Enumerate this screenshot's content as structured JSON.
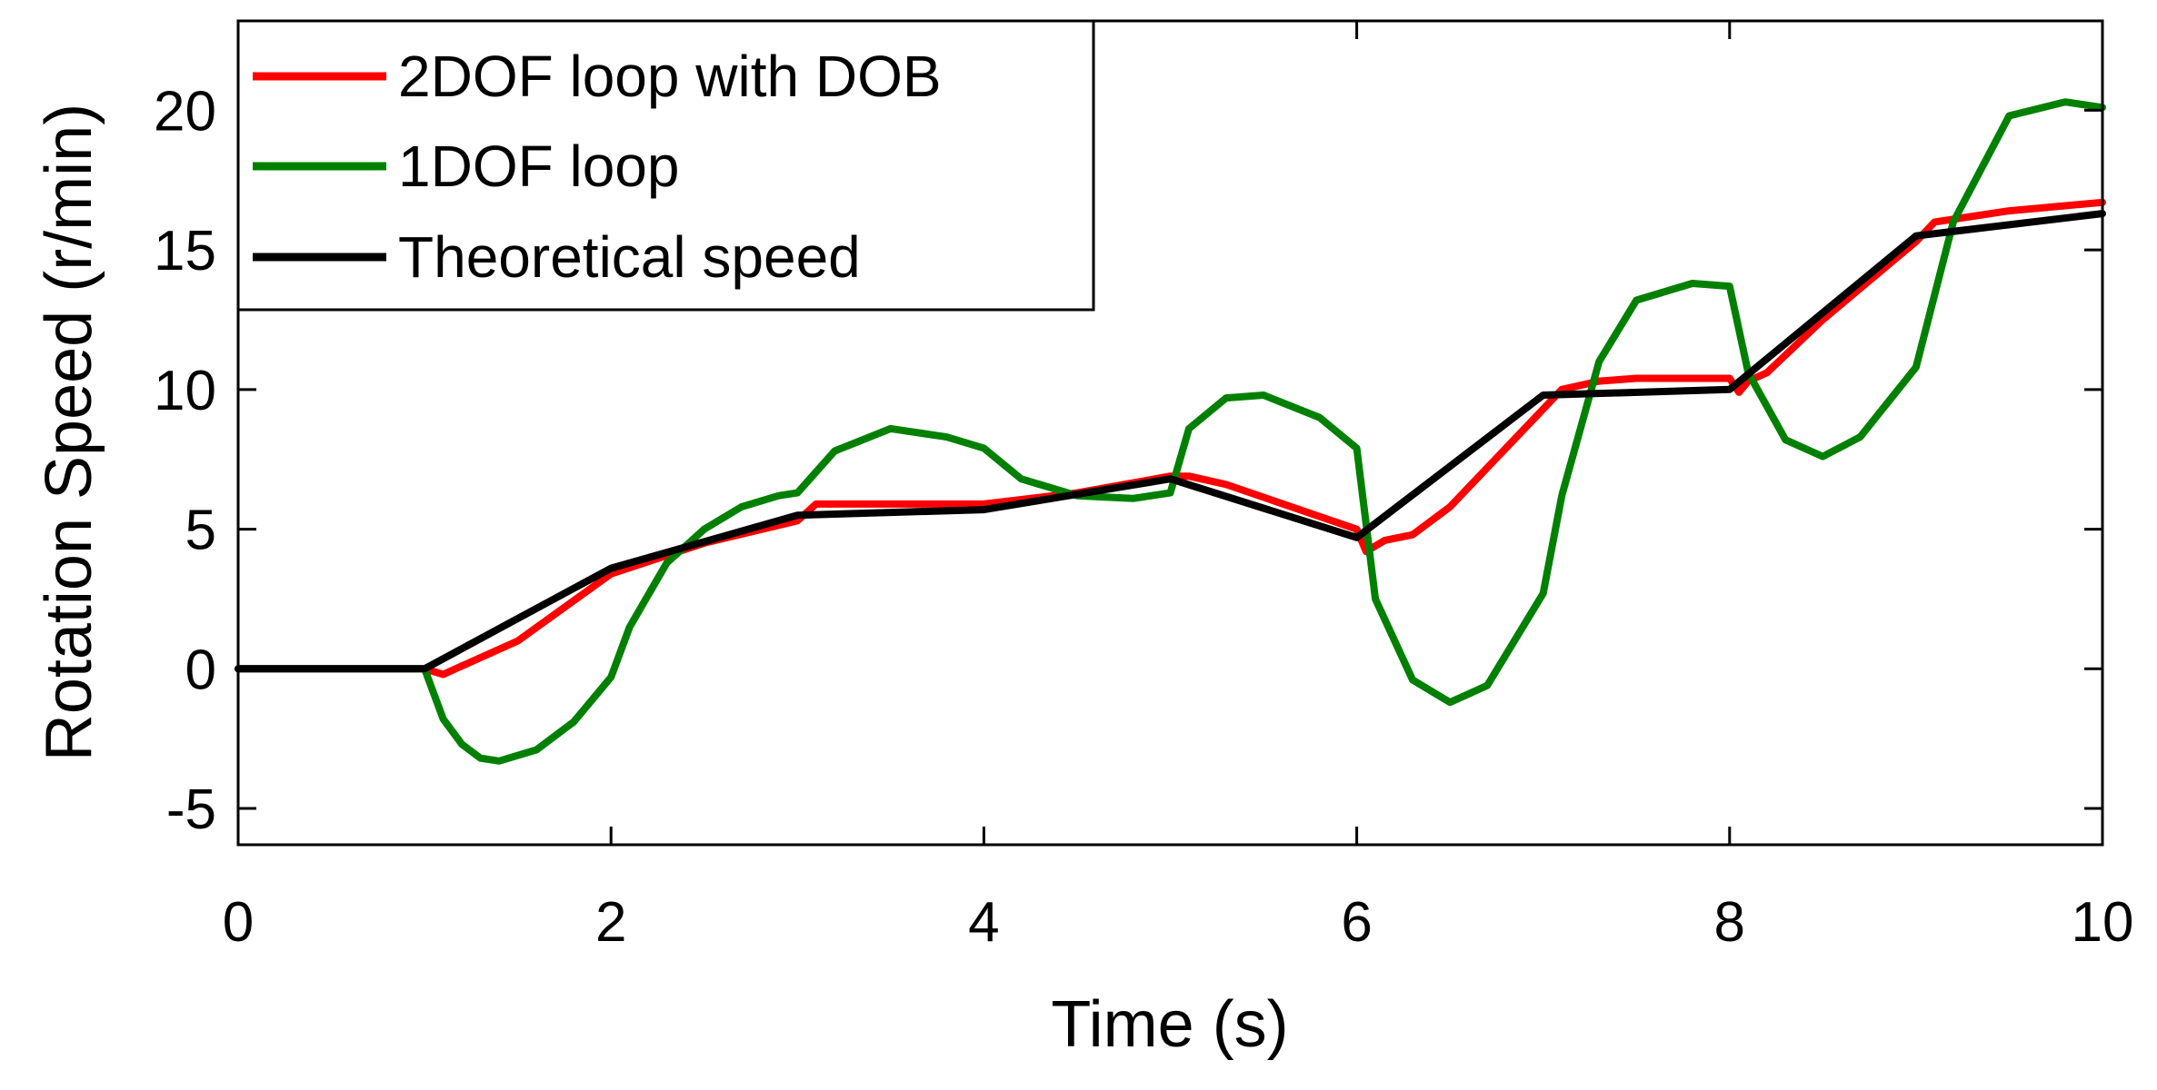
{
  "chart_data": {
    "type": "line",
    "title": "",
    "xlabel": "Time (s)",
    "ylabel": "Rotation Speed (r/min)",
    "xlim": [
      0,
      10
    ],
    "ylim": [
      -6.3,
      23.2
    ],
    "xticks": [
      0,
      2,
      4,
      6,
      8,
      10
    ],
    "xtick_labels": [
      "0",
      "2",
      "4",
      "6",
      "8",
      "10"
    ],
    "yticks": [
      -5,
      0,
      5,
      10,
      15,
      20
    ],
    "ytick_labels": [
      "-5",
      "0",
      "5",
      "10",
      "15",
      "20"
    ],
    "grid": false,
    "legend_position": "top-left",
    "series": [
      {
        "name": "2DOF loop with DOB",
        "color": "#ff0000",
        "x": [
          0,
          1,
          1.1,
          1.2,
          1.5,
          2.0,
          2.5,
          3.0,
          3.1,
          4.0,
          4.5,
          5.0,
          5.1,
          5.3,
          6.0,
          6.05,
          6.15,
          6.3,
          6.5,
          7.0,
          7.1,
          7.3,
          7.5,
          8.0,
          8.05,
          8.1,
          8.2,
          8.5,
          9.0,
          9.1,
          9.5,
          10.0
        ],
        "y": [
          0,
          0,
          -0.2,
          0.1,
          1.0,
          3.4,
          4.5,
          5.3,
          5.9,
          5.9,
          6.3,
          6.9,
          6.9,
          6.6,
          5.0,
          4.2,
          4.6,
          4.8,
          5.8,
          9.3,
          10.0,
          10.3,
          10.4,
          10.4,
          9.9,
          10.3,
          10.6,
          12.5,
          15.3,
          16.0,
          16.4,
          16.7
        ]
      },
      {
        "name": "1DOF loop",
        "color": "#008000",
        "x": [
          0,
          1.0,
          1.1,
          1.2,
          1.3,
          1.4,
          1.6,
          1.8,
          2.0,
          2.1,
          2.3,
          2.5,
          2.7,
          2.9,
          3.0,
          3.2,
          3.5,
          3.8,
          4.0,
          4.2,
          4.5,
          4.8,
          5.0,
          5.1,
          5.3,
          5.5,
          5.8,
          6.0,
          6.1,
          6.3,
          6.5,
          6.7,
          7.0,
          7.1,
          7.3,
          7.5,
          7.8,
          8.0,
          8.1,
          8.3,
          8.5,
          8.7,
          9.0,
          9.2,
          9.5,
          9.8,
          10.0
        ],
        "y": [
          0,
          0,
          -1.8,
          -2.7,
          -3.2,
          -3.3,
          -2.9,
          -1.9,
          -0.3,
          1.5,
          3.8,
          5.0,
          5.8,
          6.2,
          6.3,
          7.8,
          8.6,
          8.3,
          7.9,
          6.8,
          6.2,
          6.1,
          6.3,
          8.6,
          9.7,
          9.8,
          9.0,
          7.9,
          2.5,
          -0.4,
          -1.2,
          -0.6,
          2.7,
          6.2,
          11.0,
          13.2,
          13.8,
          13.7,
          10.6,
          8.2,
          7.6,
          8.3,
          10.8,
          16.0,
          19.8,
          20.3,
          20.1
        ]
      },
      {
        "name": "Theoretical speed",
        "color": "#000000",
        "x": [
          0,
          1,
          2,
          3,
          4,
          5,
          6,
          7,
          8,
          9,
          10
        ],
        "y": [
          0,
          0,
          3.6,
          5.5,
          5.7,
          6.8,
          4.7,
          9.8,
          10.0,
          15.5,
          16.3
        ]
      }
    ]
  }
}
